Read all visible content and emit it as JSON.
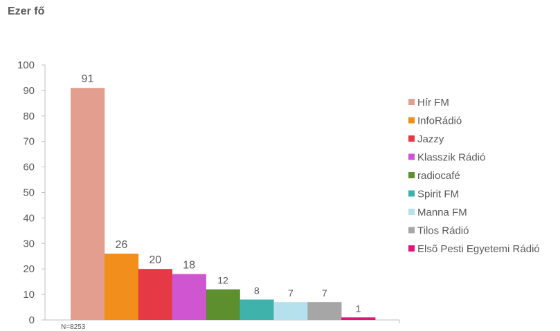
{
  "chart_data": {
    "type": "bar",
    "title": "Ezer fő",
    "categories": [
      "Hír FM",
      "InfoRádió",
      "Jazzy",
      "Klasszik Rádió",
      "radiocafé",
      "Spirit FM",
      "Manna FM",
      "Tilos Rádió",
      "Elsõ Pesti Egyetemi Rádió"
    ],
    "values": [
      91,
      26,
      20,
      18,
      12,
      8,
      7,
      7,
      1
    ],
    "colors": [
      "#e39e90",
      "#f28e1c",
      "#e63946",
      "#cf55d1",
      "#5e8f2e",
      "#3fb3ab",
      "#b4e1ec",
      "#a6a6a6",
      "#e0157a"
    ],
    "ylim": [
      0,
      100
    ],
    "yticks": [
      0,
      10,
      20,
      30,
      40,
      50,
      60,
      70,
      80,
      90,
      100
    ],
    "note": "N=8253",
    "legend_position": "right",
    "grid": false,
    "data_labels": true
  }
}
